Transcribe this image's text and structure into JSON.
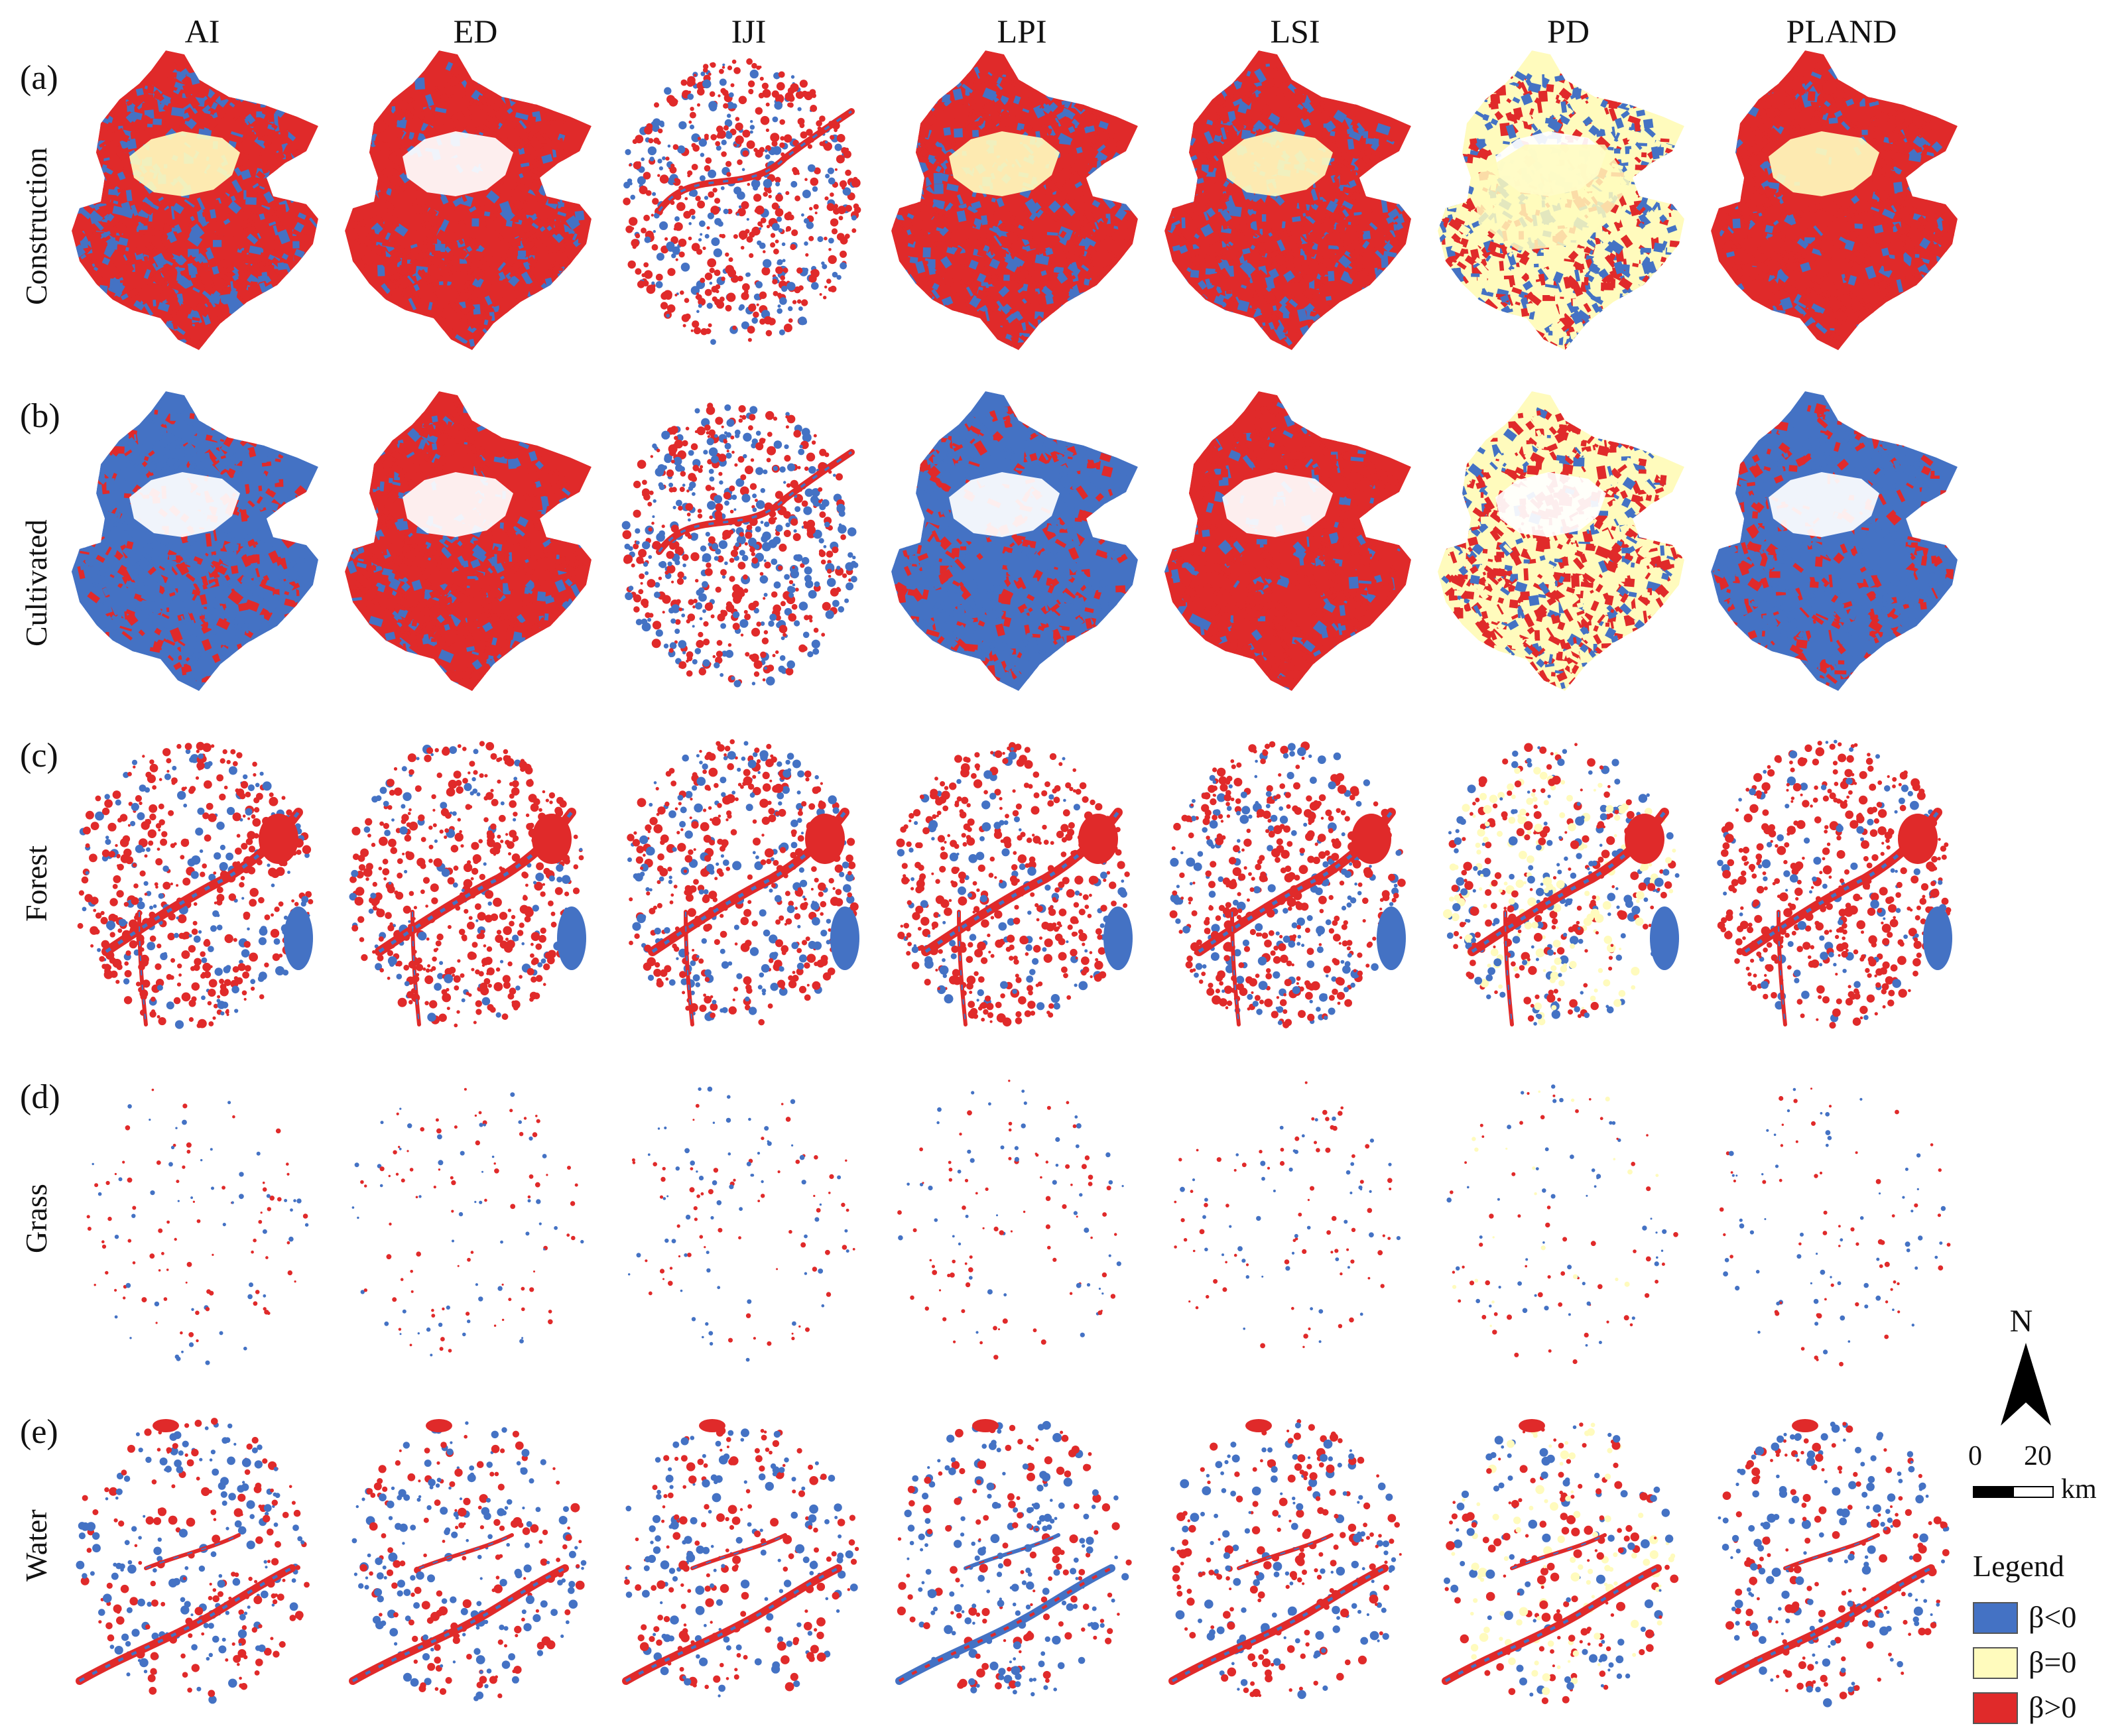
{
  "columns": [
    "AI",
    "ED",
    "IJI",
    "LPI",
    "LSI",
    "PD",
    "PLAND"
  ],
  "rows": [
    {
      "tag": "(a)",
      "label": "Construction"
    },
    {
      "tag": "(b)",
      "label": "Cultivated"
    },
    {
      "tag": "(c)",
      "label": "Forest"
    },
    {
      "tag": "(d)",
      "label": "Grass"
    },
    {
      "tag": "(e)",
      "label": "Water"
    }
  ],
  "colors": {
    "negative": "#4472c4",
    "zero": "#fffbbd",
    "positive": "#e02a2a"
  },
  "north": {
    "letter": "N"
  },
  "scale": {
    "start": "0",
    "end": "20",
    "unit": "km"
  },
  "legend": {
    "title": "Legend",
    "items": [
      {
        "label": "β<0",
        "color_key": "negative"
      },
      {
        "label": "β=0",
        "color_key": "zero"
      },
      {
        "label": "β>0",
        "color_key": "positive"
      }
    ]
  }
}
